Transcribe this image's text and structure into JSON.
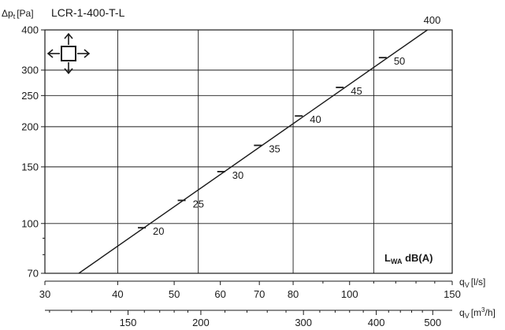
{
  "chart_data": {
    "type": "line",
    "title": "LCR-1-400-T-L",
    "ylabel": "Δp",
    "ylabel_sub": "t",
    "ylabel_unit": "[Pa]",
    "xlabel_ls": {
      "q": "q",
      "sub": "V",
      "unit": "[l/s]"
    },
    "xlabel_m3h": {
      "q": "q",
      "sub": "V",
      "unit": "[m",
      "sup": "3",
      "unit_end": "/h]"
    },
    "sound_label": {
      "L": "L",
      "sub": "WA",
      "rest": " dB(A)"
    },
    "x_scale": "log",
    "y_scale": "log",
    "xlim": [
      30,
      150
    ],
    "ylim": [
      70,
      400
    ],
    "grid": true,
    "y_ticks": [
      70,
      100,
      150,
      200,
      250,
      300,
      400
    ],
    "y_minor_ticks": [
      80,
      90
    ],
    "x_ticks_ls": [
      30,
      40,
      50,
      60,
      70,
      80,
      100,
      150
    ],
    "x_minor_ticks_ls": [
      90,
      110,
      120,
      130,
      140
    ],
    "x_grid_ls": [
      40,
      55,
      80,
      110
    ],
    "y_grid": [
      100,
      150,
      200,
      250,
      300
    ],
    "x_ticks_m3h": [
      150,
      200,
      300,
      400,
      500
    ],
    "x_minor_ticks_m3h": [
      110,
      120,
      130,
      140,
      160,
      170,
      180,
      190,
      220,
      240,
      260,
      280,
      320,
      340,
      360,
      380,
      420,
      440,
      460,
      480
    ],
    "series": [
      {
        "name": "400",
        "x": [
          34.3,
          136.0
        ],
        "y": [
          70,
          400
        ]
      }
    ],
    "sound_marks": [
      {
        "label": "20",
        "x": 44.0,
        "y": 97
      },
      {
        "label": "25",
        "x": 51.5,
        "y": 118
      },
      {
        "label": "30",
        "x": 60.2,
        "y": 145
      },
      {
        "label": "35",
        "x": 69.6,
        "y": 175
      },
      {
        "label": "40",
        "x": 81.8,
        "y": 216
      },
      {
        "label": "45",
        "x": 96.2,
        "y": 265
      },
      {
        "label": "50",
        "x": 114.0,
        "y": 328
      }
    ],
    "icon": "four-way-arrow-icon"
  }
}
